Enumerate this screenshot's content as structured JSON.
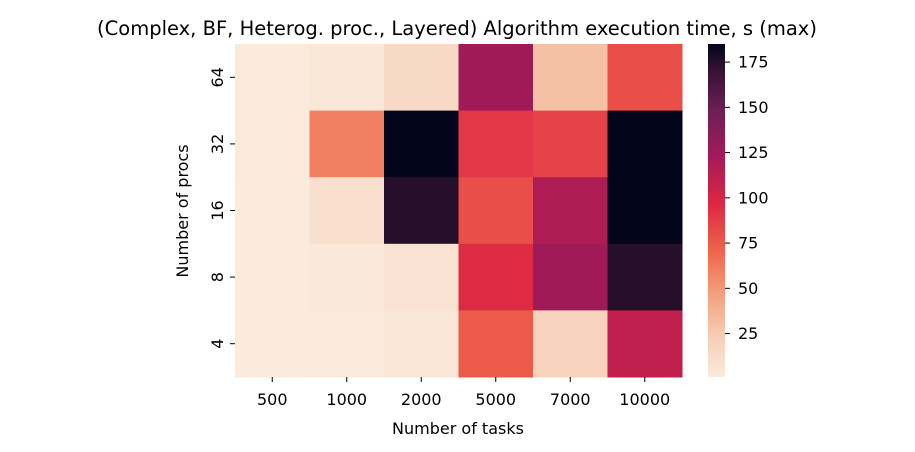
{
  "chart_data": {
    "type": "heatmap",
    "title": "(Complex, BF, Heterog. proc., Layered) Algorithm execution time, s (max)",
    "xlabel": "Number of tasks",
    "ylabel": "Number of procs",
    "x_categories": [
      "500",
      "1000",
      "2000",
      "5000",
      "7000",
      "10000"
    ],
    "y_categories": [
      "64",
      "32",
      "16",
      "8",
      "4"
    ],
    "values": [
      [
        2,
        5,
        15,
        125,
        30,
        80
      ],
      [
        2,
        60,
        185,
        90,
        85,
        185
      ],
      [
        1,
        10,
        175,
        80,
        118,
        185
      ],
      [
        1,
        3,
        8,
        95,
        125,
        175
      ],
      [
        1,
        2,
        5,
        75,
        20,
        110
      ]
    ],
    "colorbar": {
      "min": 1,
      "max": 185,
      "ticks": [
        25,
        50,
        75,
        100,
        125,
        150,
        175
      ],
      "colormap": "rocket_r"
    }
  }
}
